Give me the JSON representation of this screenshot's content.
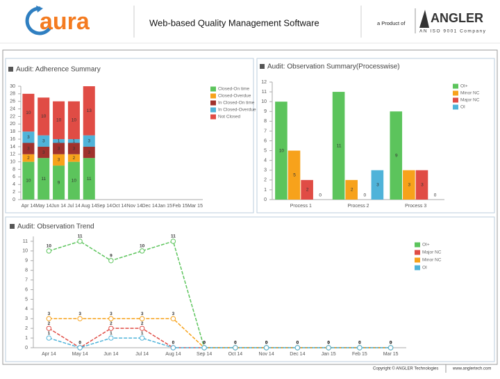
{
  "header": {
    "logo_text": "aura",
    "title": "Web-based Quality Management Software",
    "product_of": "a Product of",
    "company": "ANGLER",
    "company_tagline": "AN ISO 9001 Company"
  },
  "footer": {
    "copyright": "Copyright © ANGLER Technologies",
    "website": "www.anglertech.com"
  },
  "chart_data": [
    {
      "type": "stacked_bar",
      "title": "Audit: Adherence Summary",
      "categories": [
        "Apr 14",
        "May 14",
        "Jun 14",
        "Jul 14",
        "Aug 14",
        "Sep 14",
        "Oct 14",
        "Nov 14",
        "Dec 14",
        "Jan 15",
        "Feb 15",
        "Mar 15"
      ],
      "series": [
        {
          "name": "Closed-On time",
          "color": "#5cc45c",
          "values": [
            10,
            11,
            9,
            10,
            11,
            0,
            0,
            0,
            0,
            0,
            0,
            0
          ]
        },
        {
          "name": "Closed-Overdue",
          "color": "#f7a21b",
          "values": [
            2,
            0,
            3,
            2,
            0,
            0,
            0,
            0,
            0,
            0,
            0,
            0
          ]
        },
        {
          "name": "In Closed-On time",
          "color": "#a0322d",
          "values": [
            3,
            3,
            3,
            3,
            3,
            0,
            0,
            0,
            0,
            0,
            0,
            0
          ]
        },
        {
          "name": "In Closed-Overdue",
          "color": "#4fb3d9",
          "values": [
            3,
            3,
            1,
            1,
            3,
            0,
            0,
            0,
            0,
            0,
            0,
            0
          ]
        },
        {
          "name": "Not Closed",
          "color": "#e04c45",
          "values": [
            10,
            10,
            10,
            10,
            13,
            0,
            0,
            0,
            0,
            0,
            0,
            0
          ]
        }
      ],
      "ylim": [
        0,
        30
      ],
      "yticks": [
        0,
        2,
        4,
        6,
        8,
        10,
        12,
        14,
        16,
        18,
        20,
        22,
        24,
        26,
        28,
        30
      ],
      "grid": false
    },
    {
      "type": "grouped_bar",
      "title": "Audit: Observation Summary(Processwise)",
      "categories": [
        "Process 1",
        "Process 2",
        "Process 3"
      ],
      "series": [
        {
          "name": "OI+",
          "color": "#5cc45c",
          "values": [
            10,
            11,
            9
          ]
        },
        {
          "name": "Minor NC",
          "color": "#f7a21b",
          "values": [
            5,
            2,
            3
          ]
        },
        {
          "name": "Major NC",
          "color": "#e04c45",
          "values": [
            2,
            0,
            3
          ]
        },
        {
          "name": "OI",
          "color": "#4fb3d9",
          "values": [
            0,
            3,
            0
          ]
        }
      ],
      "ylim": [
        0,
        12
      ],
      "yticks": [
        0,
        1,
        2,
        3,
        4,
        5,
        6,
        7,
        8,
        9,
        10,
        11,
        12
      ],
      "grid": false
    },
    {
      "type": "line",
      "title": "Audit: Observation Trend",
      "categories": [
        "Apr 14",
        "May 14",
        "Jun 14",
        "Jul 14",
        "Aug 14",
        "Sep 14",
        "Oct 14",
        "Nov 14",
        "Dec 14",
        "Jan 15",
        "Feb 15",
        "Mar 15"
      ],
      "series": [
        {
          "name": "OI+",
          "color": "#5cc45c",
          "values": [
            10,
            11,
            9,
            10,
            11,
            0,
            0,
            0,
            0,
            0,
            0,
            0
          ]
        },
        {
          "name": "Major NC",
          "color": "#e04c45",
          "values": [
            2,
            0,
            2,
            2,
            0,
            0,
            0,
            0,
            0,
            0,
            0,
            0
          ]
        },
        {
          "name": "Minor NC",
          "color": "#f7a21b",
          "values": [
            3,
            3,
            3,
            3,
            3,
            0,
            0,
            0,
            0,
            0,
            0,
            0
          ]
        },
        {
          "name": "OI",
          "color": "#4fb3d9",
          "values": [
            1,
            0,
            1,
            1,
            0,
            0,
            0,
            0,
            0,
            0,
            0,
            0
          ]
        }
      ],
      "ylim": [
        0,
        11.5
      ],
      "yticks": [
        0,
        1,
        2,
        3,
        4,
        5,
        6,
        7,
        8,
        9,
        10,
        11
      ],
      "grid": false
    }
  ]
}
